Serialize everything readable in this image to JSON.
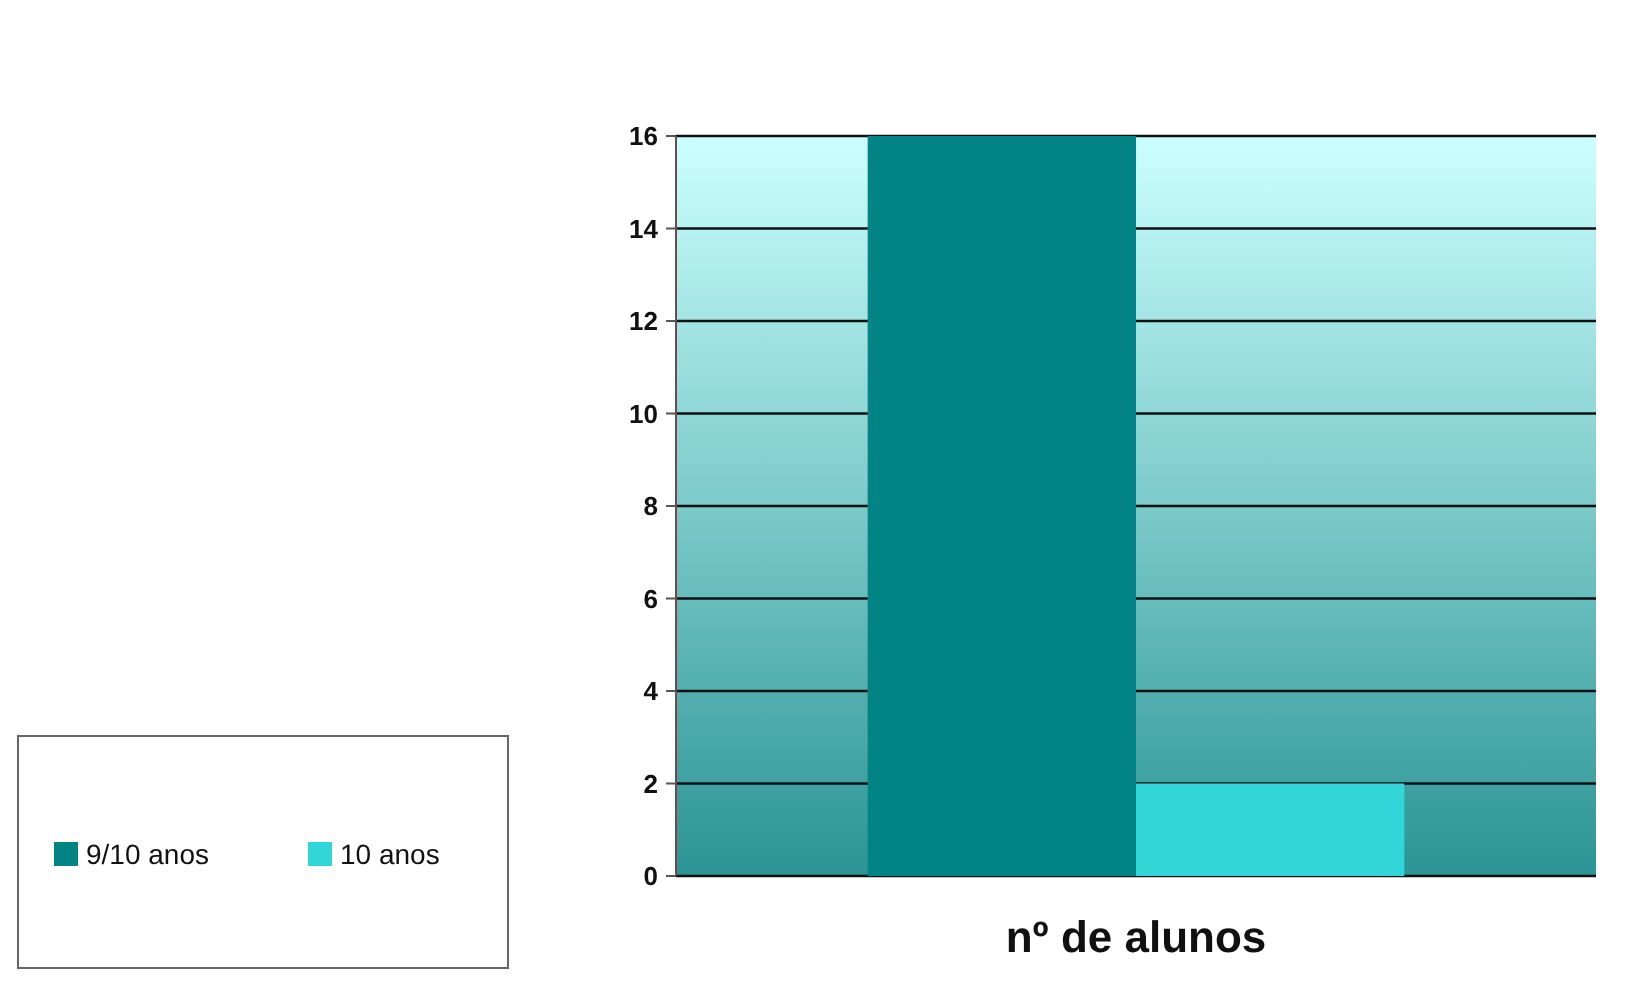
{
  "chart_data": {
    "type": "bar",
    "categories": [
      "nº de alunos"
    ],
    "series": [
      {
        "name": "9/10 anos",
        "color": "#028484",
        "values": [
          16
        ]
      },
      {
        "name": "10 anos",
        "color": "#33d6d6",
        "values": [
          2
        ]
      }
    ],
    "ylim": [
      0,
      16
    ],
    "yticks": [
      0,
      2,
      4,
      6,
      8,
      10,
      12,
      14,
      16
    ],
    "grid": "y",
    "legend": "left"
  }
}
